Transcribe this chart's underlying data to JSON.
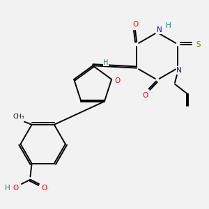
{
  "bg_color": "#f2f2f2",
  "atom_colors": {
    "C": "#000000",
    "O": "#ff0000",
    "N": "#0000ff",
    "S": "#808000",
    "H": "#008080"
  },
  "bond_color": "#000000",
  "lw": 1.4,
  "fontsize": 7.5
}
